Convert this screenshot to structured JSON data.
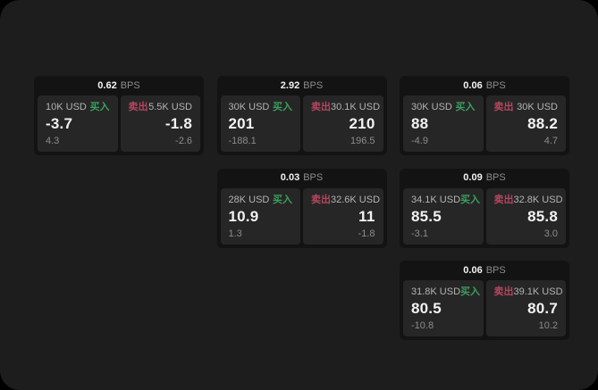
{
  "page": {
    "background": "#1d1d1d",
    "outer_background": "#000000"
  },
  "colors": {
    "page_bg": "#1d1d1d",
    "card_bg": "#131313",
    "panel_bg": "#262626",
    "value_white": "#f2f2f2",
    "label_gray": "#b3b3b3",
    "delta_gray": "#8c8c8c",
    "buy_green": "#3d9e5f",
    "sell_red": "#b5465f"
  },
  "cards": [
    {
      "bps_value": "0.62",
      "bps_unit": "BPS",
      "row": 1,
      "col": 1,
      "buy": {
        "size": "10K USD",
        "side": "买入",
        "price": "-3.7",
        "delta": "4.3"
      },
      "sell": {
        "side": "卖出",
        "size": "5.5K USD",
        "price": "-1.8",
        "delta": "-2.6"
      }
    },
    {
      "bps_value": "2.92",
      "bps_unit": "BPS",
      "row": 1,
      "col": 2,
      "buy": {
        "size": "30K USD",
        "side": "买入",
        "price": "201",
        "delta": "-188.1"
      },
      "sell": {
        "side": "卖出",
        "size": "30.1K USD",
        "price": "210",
        "delta": "196.5"
      }
    },
    {
      "bps_value": "0.06",
      "bps_unit": "BPS",
      "row": 1,
      "col": 3,
      "buy": {
        "size": "30K USD",
        "side": "买入",
        "price": "88",
        "delta": "-4.9"
      },
      "sell": {
        "side": "卖出",
        "size": "30K USD",
        "price": "88.2",
        "delta": "4.7"
      }
    },
    {
      "bps_value": "0.03",
      "bps_unit": "BPS",
      "row": 2,
      "col": 2,
      "buy": {
        "size": "28K USD",
        "side": "买入",
        "price": "10.9",
        "delta": "1.3"
      },
      "sell": {
        "side": "卖出",
        "size": "32.6K USD",
        "price": "11",
        "delta": "-1.8"
      }
    },
    {
      "bps_value": "0.09",
      "bps_unit": "BPS",
      "row": 2,
      "col": 3,
      "buy": {
        "size": "34.1K USD",
        "side": "买入",
        "price": "85.5",
        "delta": "-3.1"
      },
      "sell": {
        "side": "卖出",
        "size": "32.8K USD",
        "price": "85.8",
        "delta": "3.0"
      }
    },
    {
      "bps_value": "0.06",
      "bps_unit": "BPS",
      "row": 3,
      "col": 3,
      "buy": {
        "size": "31.8K USD",
        "side": "买入",
        "price": "80.5",
        "delta": "-10.8"
      },
      "sell": {
        "side": "卖出",
        "size": "39.1K USD",
        "price": "80.7",
        "delta": "10.2"
      }
    }
  ]
}
